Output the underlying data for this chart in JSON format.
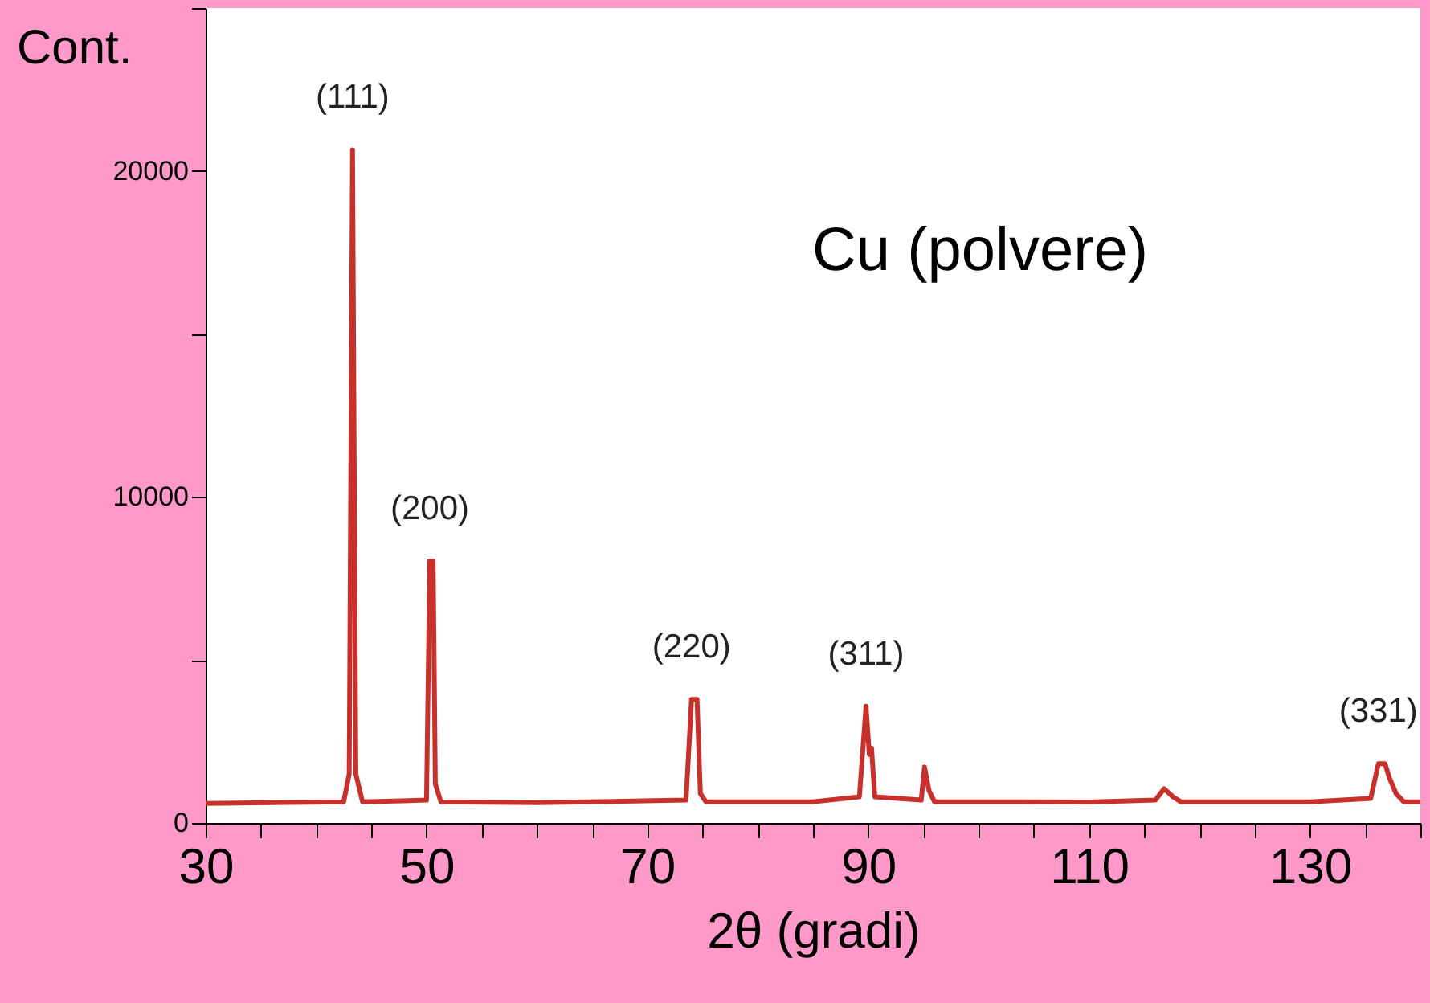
{
  "chart_data": {
    "type": "line",
    "xlabel": "2θ (gradi)",
    "ylabel": "Cont.",
    "annotations": [
      "Cu (polvere)",
      {
        "text": "(111)",
        "x": 43.3,
        "y": 20650
      },
      {
        "text": "(200)",
        "x": 50.3,
        "y": 8040
      },
      {
        "text": "(220)",
        "x": 74.0,
        "y": 3790
      },
      {
        "text": "(311)",
        "x": 89.8,
        "y": 3580
      },
      {
        "text": "(331)",
        "x": 136.2,
        "y": 1820
      }
    ],
    "series": [
      {
        "color": "#c8302c",
        "x": [
          30,
          36,
          42.5,
          43.0,
          43.3,
          43.6,
          44.2,
          50.0,
          50.3,
          50.6,
          50.8,
          51.3,
          60,
          73.5,
          74.0,
          74.5,
          74.8,
          75.3,
          85,
          89.2,
          89.8,
          90.1,
          90.3,
          90.6,
          94.8,
          95.1,
          95.5,
          96.0,
          110,
          116.0,
          116.8,
          117.6,
          118.3,
          130,
          135.5,
          136.2,
          136.8,
          137.2,
          137.8,
          138.5,
          140
        ],
        "values": [
          600,
          620,
          650,
          1500,
          20650,
          1500,
          650,
          700,
          8040,
          8040,
          1200,
          650,
          620,
          700,
          3790,
          3790,
          900,
          650,
          650,
          800,
          3580,
          2100,
          2300,
          800,
          700,
          1720,
          1000,
          650,
          640,
          700,
          1050,
          800,
          650,
          650,
          750,
          1820,
          1820,
          1380,
          900,
          650,
          650
        ]
      }
    ],
    "xlim": [
      30,
      140
    ],
    "xticks": [
      30,
      {
        "value": 35,
        "label": null
      },
      {
        "value": 40,
        "label": null
      },
      {
        "value": 45,
        "label": null
      },
      50,
      {
        "value": 55,
        "label": null
      },
      {
        "value": 60,
        "label": null
      },
      {
        "value": 65,
        "label": null
      },
      70,
      {
        "value": 75,
        "label": null
      },
      {
        "value": 80,
        "label": null
      },
      {
        "value": 85,
        "label": null
      },
      90,
      {
        "value": 95,
        "label": null
      },
      {
        "value": 100,
        "label": null
      },
      {
        "value": 105,
        "label": null
      },
      110,
      {
        "value": 115,
        "label": null
      },
      {
        "value": 120,
        "label": null
      },
      {
        "value": 125,
        "label": null
      },
      130,
      {
        "value": 135,
        "label": null
      },
      {
        "value": 140,
        "label": null
      }
    ],
    "ylim": [
      0,
      25000
    ],
    "yticks": [
      0,
      {
        "value": 5000,
        "label": null
      },
      10000,
      {
        "value": 15000,
        "label": null
      },
      20000,
      {
        "value": 25000,
        "label": null
      }
    ],
    "grid": false,
    "marker": "none",
    "line_style": "solid"
  }
}
